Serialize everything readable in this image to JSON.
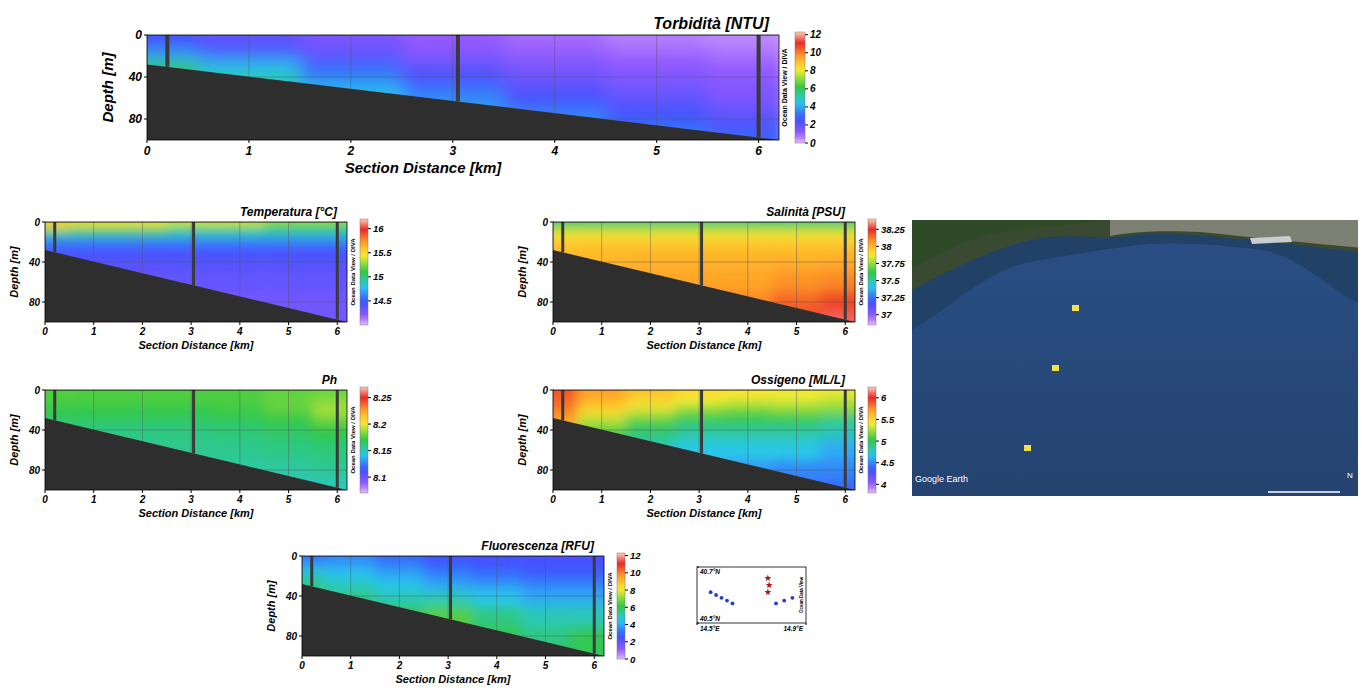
{
  "chart_data": [
    {
      "type": "section",
      "title": "Torbidità [NTU]",
      "x_label": "Section Distance [km]",
      "y_label": "Depth [m]",
      "annotation": "Ocean Data View / DIVA",
      "xlim": [
        0,
        6.2
      ],
      "ylim": [
        0,
        100
      ],
      "xticks": [
        0,
        1,
        2,
        3,
        4,
        5,
        6
      ],
      "yticks": [
        0,
        40,
        80
      ],
      "grid": true,
      "x": [
        0,
        1,
        2,
        3,
        4,
        5,
        6
      ],
      "y": [
        0,
        5,
        10,
        20,
        30,
        40,
        60,
        80,
        100
      ],
      "cells": [
        [
          2.5,
          2,
          1.5,
          1,
          0.8,
          0.6,
          0.5
        ],
        [
          2.5,
          2,
          1.5,
          1,
          0.8,
          0.6,
          0.5
        ],
        [
          2.8,
          2.2,
          1.6,
          1.1,
          0.9,
          0.7,
          0.6
        ],
        [
          4,
          3,
          2.2,
          1.5,
          1.2,
          1,
          0.8
        ],
        [
          6,
          4.5,
          3,
          2,
          1.5,
          1.2,
          1
        ],
        [
          6,
          5,
          3.5,
          2.5,
          1.8,
          1.4,
          1.2
        ],
        [
          6,
          5,
          4.5,
          3.5,
          2.5,
          2,
          1.5
        ],
        [
          6,
          5,
          4.5,
          4,
          3.5,
          2.8,
          2.2
        ],
        [
          6,
          5,
          4.5,
          4,
          4,
          3.5,
          3
        ]
      ],
      "color_range": [
        0,
        12.3
      ],
      "color_ticks": [
        0,
        2,
        4,
        6,
        8,
        10,
        12
      ],
      "bottom": {
        "x": [
          0,
          6.2
        ],
        "depth": [
          28,
          100
        ]
      },
      "stations": [
        0.2,
        3.05,
        6
      ]
    },
    {
      "type": "section",
      "title": "Temperatura [°C]",
      "x_label": "Section Distance [km]",
      "y_label": "Depth [m]",
      "annotation": "Ocean Data View / DIVA",
      "xlim": [
        0,
        6.2
      ],
      "ylim": [
        0,
        100
      ],
      "xticks": [
        0,
        1,
        2,
        3,
        4,
        5,
        6
      ],
      "yticks": [
        0,
        40,
        80
      ],
      "grid": true,
      "x": [
        0,
        1,
        2,
        3,
        4,
        5,
        6
      ],
      "y": [
        0,
        5,
        10,
        20,
        30,
        40,
        60,
        80,
        100
      ],
      "cells": [
        [
          15.6,
          15.5,
          15.5,
          15.4,
          15.4,
          15.3,
          15.3
        ],
        [
          15.4,
          15.3,
          15.3,
          15.2,
          15.2,
          15.1,
          15.1
        ],
        [
          15,
          15,
          15,
          14.9,
          14.9,
          14.9,
          14.9
        ],
        [
          14.6,
          14.6,
          14.6,
          14.6,
          14.6,
          14.6,
          14.6
        ],
        [
          14.45,
          14.45,
          14.45,
          14.45,
          14.45,
          14.45,
          14.45
        ],
        [
          14.4,
          14.4,
          14.4,
          14.4,
          14.4,
          14.4,
          14.4
        ],
        [
          14.35,
          14.35,
          14.35,
          14.35,
          14.35,
          14.35,
          14.35
        ],
        [
          14.3,
          14.3,
          14.3,
          14.3,
          14.3,
          14.3,
          14.3
        ],
        [
          14.3,
          14.3,
          14.3,
          14.3,
          14.3,
          14.3,
          14.3
        ]
      ],
      "color_range": [
        14,
        16.2
      ],
      "color_ticks": [
        14.5,
        15,
        15.5,
        16
      ],
      "bottom": {
        "x": [
          0,
          6.2
        ],
        "depth": [
          28,
          100
        ]
      },
      "stations": [
        0.2,
        3.05,
        6
      ]
    },
    {
      "type": "section",
      "title": "Salinità [PSU]",
      "x_label": "Section Distance [km]",
      "y_label": "Depth [m]",
      "annotation": "Ocean Data View / DIVA",
      "xlim": [
        0,
        6.2
      ],
      "ylim": [
        0,
        100
      ],
      "xticks": [
        0,
        1,
        2,
        3,
        4,
        5,
        6
      ],
      "yticks": [
        0,
        40,
        80
      ],
      "grid": true,
      "x": [
        0,
        1,
        2,
        3,
        4,
        5,
        6
      ],
      "y": [
        0,
        5,
        10,
        20,
        30,
        40,
        60,
        80,
        100
      ],
      "cells": [
        [
          37.55,
          37.55,
          37.55,
          37.55,
          37.55,
          37.55,
          37.55
        ],
        [
          37.7,
          37.7,
          37.7,
          37.7,
          37.7,
          37.7,
          37.7
        ],
        [
          37.85,
          37.85,
          37.85,
          37.85,
          37.85,
          37.85,
          37.85
        ],
        [
          37.95,
          37.95,
          37.95,
          37.95,
          37.95,
          37.95,
          37.95
        ],
        [
          38,
          38,
          38,
          38,
          38,
          38,
          38
        ],
        [
          38,
          38,
          38.02,
          38.02,
          38.02,
          38.03,
          38.04
        ],
        [
          38.05,
          38.05,
          38.05,
          38.05,
          38.05,
          38.08,
          38.1
        ],
        [
          38.1,
          38.1,
          38.1,
          38.1,
          38.1,
          38.15,
          38.2
        ],
        [
          38.15,
          38.15,
          38.15,
          38.15,
          38.2,
          38.25,
          38.3
        ]
      ],
      "color_range": [
        36.85,
        38.4
      ],
      "color_ticks": [
        37,
        37.25,
        37.5,
        37.75,
        38,
        38.25
      ],
      "bottom": {
        "x": [
          0,
          6.2
        ],
        "depth": [
          28,
          100
        ]
      },
      "stations": [
        0.2,
        3.05,
        6
      ]
    },
    {
      "type": "section",
      "title": "Ph",
      "x_label": "Section Distance [km]",
      "y_label": "Depth [m]",
      "annotation": "Ocean Data View / DIVA",
      "xlim": [
        0,
        6.2
      ],
      "ylim": [
        0,
        100
      ],
      "xticks": [
        0,
        1,
        2,
        3,
        4,
        5,
        6
      ],
      "yticks": [
        0,
        40,
        80
      ],
      "grid": true,
      "x": [
        0,
        1,
        2,
        3,
        4,
        5,
        6
      ],
      "y": [
        0,
        5,
        10,
        20,
        30,
        40,
        60,
        80,
        100
      ],
      "cells": [
        [
          8.175,
          8.175,
          8.175,
          8.175,
          8.175,
          8.178,
          8.18
        ],
        [
          8.175,
          8.175,
          8.175,
          8.175,
          8.175,
          8.178,
          8.18
        ],
        [
          8.175,
          8.175,
          8.175,
          8.175,
          8.175,
          8.18,
          8.185
        ],
        [
          8.17,
          8.17,
          8.17,
          8.17,
          8.172,
          8.178,
          8.19
        ],
        [
          8.165,
          8.165,
          8.165,
          8.165,
          8.167,
          8.17,
          8.18
        ],
        [
          8.16,
          8.16,
          8.16,
          8.16,
          8.162,
          8.165,
          8.17
        ],
        [
          8.158,
          8.158,
          8.158,
          8.158,
          8.158,
          8.16,
          8.162
        ],
        [
          8.155,
          8.155,
          8.155,
          8.155,
          8.155,
          8.155,
          8.157
        ],
        [
          8.15,
          8.15,
          8.15,
          8.15,
          8.15,
          8.15,
          8.15
        ]
      ],
      "color_range": [
        8.07,
        8.27
      ],
      "color_ticks": [
        8.1,
        8.15,
        8.2,
        8.25
      ],
      "bottom": {
        "x": [
          0,
          6.2
        ],
        "depth": [
          28,
          100
        ]
      },
      "stations": [
        0.2,
        3.05,
        6
      ]
    },
    {
      "type": "section",
      "title": "Ossigeno [ML/L]",
      "x_label": "Section Distance [km]",
      "y_label": "Depth [m]",
      "annotation": "Ocean Data View / DIVA",
      "xlim": [
        0,
        6.2
      ],
      "ylim": [
        0,
        100
      ],
      "xticks": [
        0,
        1,
        2,
        3,
        4,
        5,
        6
      ],
      "yticks": [
        0,
        40,
        80
      ],
      "grid": true,
      "x": [
        0,
        1,
        2,
        3,
        4,
        5,
        6
      ],
      "y": [
        0,
        5,
        10,
        20,
        30,
        40,
        60,
        80,
        100
      ],
      "cells": [
        [
          5.9,
          5.7,
          5.6,
          5.5,
          5.45,
          5.4,
          5.4
        ],
        [
          5.9,
          5.7,
          5.55,
          5.45,
          5.4,
          5.4,
          5.35
        ],
        [
          5.85,
          5.65,
          5.5,
          5.4,
          5.35,
          5.35,
          5.3
        ],
        [
          5.8,
          5.5,
          5.35,
          5.2,
          5.15,
          5.2,
          5.2
        ],
        [
          5.7,
          5.3,
          5.1,
          5,
          5,
          5,
          4.9
        ],
        [
          5.6,
          5.1,
          4.95,
          4.85,
          4.85,
          4.85,
          4.8
        ],
        [
          5.5,
          5,
          4.8,
          4.7,
          4.7,
          4.7,
          4.6
        ],
        [
          5.5,
          5,
          4.8,
          4.6,
          4.55,
          4.5,
          4.5
        ],
        [
          5.5,
          5,
          4.8,
          4.6,
          4.5,
          4.45,
          4.4
        ]
      ],
      "color_range": [
        3.8,
        6.25
      ],
      "color_ticks": [
        4,
        4.5,
        5,
        5.5,
        6
      ],
      "bottom": {
        "x": [
          0,
          6.2
        ],
        "depth": [
          28,
          100
        ]
      },
      "stations": [
        0.2,
        3.05,
        6
      ]
    },
    {
      "type": "section",
      "title": "Fluorescenza [RFU]",
      "x_label": "Section Distance [km]",
      "y_label": "Depth [m]",
      "annotation": "Ocean Data View / DIVA",
      "xlim": [
        0,
        6.2
      ],
      "ylim": [
        0,
        100
      ],
      "xticks": [
        0,
        1,
        2,
        3,
        4,
        5,
        6
      ],
      "yticks": [
        0,
        40,
        80
      ],
      "grid": true,
      "x": [
        0,
        1,
        2,
        3,
        4,
        5,
        6
      ],
      "y": [
        0,
        5,
        10,
        20,
        30,
        40,
        60,
        80,
        100
      ],
      "cells": [
        [
          3,
          3.5,
          3,
          2.5,
          2.5,
          2.5,
          2.5
        ],
        [
          3.5,
          3.5,
          3.2,
          2.8,
          2.5,
          2.5,
          2.5
        ],
        [
          4,
          4,
          3.5,
          3,
          2.8,
          2.6,
          2.6
        ],
        [
          5,
          4.5,
          4,
          3.5,
          3.2,
          3,
          3
        ],
        [
          5.5,
          5,
          4.5,
          4,
          3.8,
          3.5,
          3.5
        ],
        [
          5.5,
          5.5,
          5,
          5,
          4.5,
          4,
          4
        ],
        [
          5.5,
          5.5,
          6,
          6.5,
          5.5,
          5,
          5
        ],
        [
          5.5,
          5.5,
          6,
          6.5,
          6,
          5.5,
          6
        ],
        [
          5.5,
          5.5,
          6,
          6.5,
          6,
          6,
          6
        ]
      ],
      "color_range": [
        0,
        12.3
      ],
      "color_ticks": [
        0,
        2,
        4,
        6,
        8,
        10,
        12
      ],
      "bottom": {
        "x": [
          0,
          6.2
        ],
        "depth": [
          28,
          100
        ]
      },
      "stations": [
        0.2,
        3.05,
        6
      ]
    },
    {
      "type": "scatter",
      "annotation": "Ocean Data View",
      "xlim": [
        14.5,
        14.9
      ],
      "ylim": [
        40.5,
        40.7
      ],
      "xticks": [
        {
          "value": 14.5,
          "label": "14.5°E"
        },
        {
          "value": 14.9,
          "label": "14.9°E"
        }
      ],
      "yticks": [
        {
          "value": 40.5,
          "label": "40.5°N"
        },
        {
          "value": 40.7,
          "label": "40.7°N"
        }
      ],
      "series": [
        {
          "color": "#1f3fd0",
          "marker": "circle",
          "x": [
            14.55,
            14.57,
            14.59,
            14.61,
            14.63,
            14.79,
            14.82,
            14.85
          ],
          "y": [
            40.61,
            40.6,
            40.59,
            40.58,
            40.57,
            40.57,
            40.58,
            40.59
          ]
        },
        {
          "color": "#b01818",
          "marker": "star",
          "x": [
            14.76,
            14.765,
            14.76
          ],
          "y": [
            40.66,
            40.635,
            40.61
          ]
        }
      ]
    }
  ],
  "satellite": {
    "attribution": "Google Earth",
    "north": "N"
  }
}
